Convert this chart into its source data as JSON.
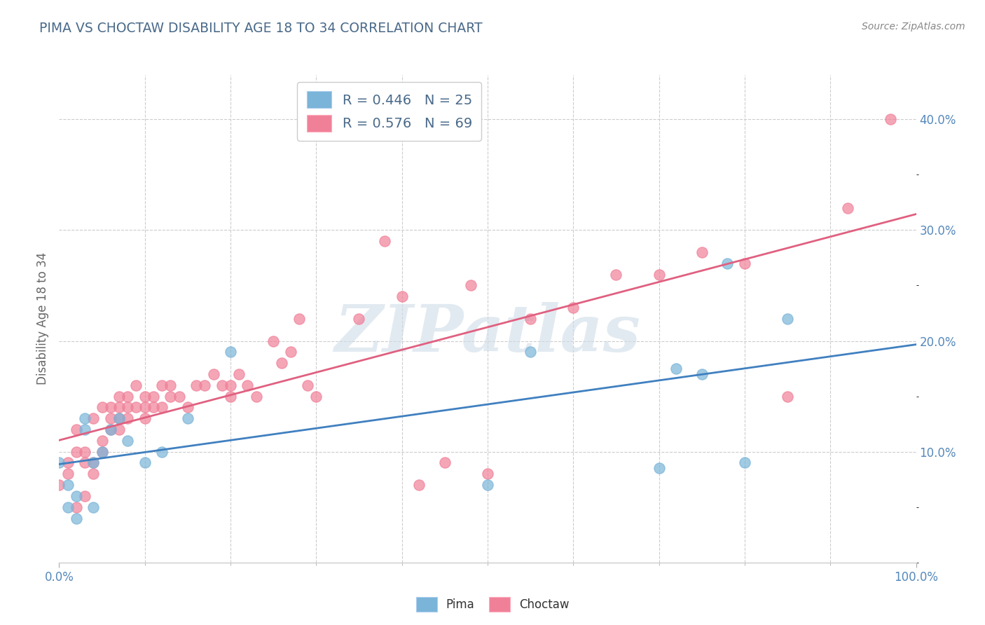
{
  "title": "PIMA VS CHOCTAW DISABILITY AGE 18 TO 34 CORRELATION CHART",
  "source": "Source: ZipAtlas.com",
  "ylabel": "Disability Age 18 to 34",
  "watermark": "ZIPatlas",
  "xlim": [
    0.0,
    1.0
  ],
  "ylim": [
    0.0,
    0.44
  ],
  "pima_color": "#7ab4d8",
  "choctaw_color": "#f08098",
  "pima_line_color": "#4080c0",
  "choctaw_line_color": "#e06080",
  "pima_R": 0.446,
  "pima_N": 25,
  "choctaw_R": 0.576,
  "choctaw_N": 69,
  "pima_x": [
    0.0,
    0.01,
    0.01,
    0.02,
    0.02,
    0.03,
    0.03,
    0.04,
    0.04,
    0.05,
    0.06,
    0.07,
    0.08,
    0.1,
    0.12,
    0.15,
    0.2,
    0.5,
    0.55,
    0.7,
    0.72,
    0.75,
    0.78,
    0.8,
    0.85
  ],
  "pima_y": [
    0.09,
    0.05,
    0.07,
    0.04,
    0.06,
    0.12,
    0.13,
    0.05,
    0.09,
    0.1,
    0.12,
    0.13,
    0.11,
    0.09,
    0.1,
    0.13,
    0.19,
    0.07,
    0.19,
    0.085,
    0.175,
    0.17,
    0.27,
    0.09,
    0.22
  ],
  "choctaw_x": [
    0.0,
    0.01,
    0.01,
    0.02,
    0.02,
    0.02,
    0.03,
    0.03,
    0.03,
    0.04,
    0.04,
    0.04,
    0.05,
    0.05,
    0.05,
    0.06,
    0.06,
    0.06,
    0.07,
    0.07,
    0.07,
    0.07,
    0.08,
    0.08,
    0.08,
    0.09,
    0.09,
    0.1,
    0.1,
    0.1,
    0.11,
    0.11,
    0.12,
    0.12,
    0.13,
    0.13,
    0.14,
    0.15,
    0.16,
    0.17,
    0.18,
    0.19,
    0.2,
    0.2,
    0.21,
    0.22,
    0.23,
    0.25,
    0.26,
    0.27,
    0.28,
    0.29,
    0.3,
    0.35,
    0.38,
    0.4,
    0.42,
    0.45,
    0.48,
    0.5,
    0.55,
    0.6,
    0.65,
    0.7,
    0.75,
    0.8,
    0.85,
    0.92,
    0.97
  ],
  "choctaw_y": [
    0.07,
    0.08,
    0.09,
    0.05,
    0.1,
    0.12,
    0.06,
    0.09,
    0.1,
    0.08,
    0.09,
    0.13,
    0.1,
    0.11,
    0.14,
    0.12,
    0.13,
    0.14,
    0.12,
    0.13,
    0.14,
    0.15,
    0.13,
    0.14,
    0.15,
    0.14,
    0.16,
    0.13,
    0.14,
    0.15,
    0.14,
    0.15,
    0.14,
    0.16,
    0.15,
    0.16,
    0.15,
    0.14,
    0.16,
    0.16,
    0.17,
    0.16,
    0.15,
    0.16,
    0.17,
    0.16,
    0.15,
    0.2,
    0.18,
    0.19,
    0.22,
    0.16,
    0.15,
    0.22,
    0.29,
    0.24,
    0.07,
    0.09,
    0.25,
    0.08,
    0.22,
    0.23,
    0.26,
    0.26,
    0.28,
    0.27,
    0.15,
    0.32,
    0.4
  ],
  "background_color": "#ffffff",
  "grid_color": "#cccccc",
  "title_color": "#4a6a8a",
  "axis_label_color": "#666666",
  "tick_color": "#5588bb",
  "legend_text_color": "#4a6a8a"
}
